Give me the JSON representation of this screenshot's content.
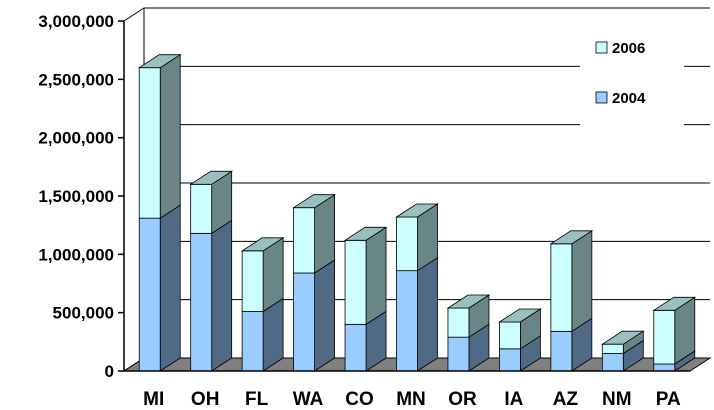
{
  "chart_data": {
    "type": "bar",
    "stacked": true,
    "three_d": true,
    "categories": [
      "MI",
      "OH",
      "FL",
      "WA",
      "CO",
      "MN",
      "OR",
      "IA",
      "AZ",
      "NM",
      "PA"
    ],
    "series": [
      {
        "name": "2004",
        "values": [
          1310000,
          1180000,
          510000,
          840000,
          400000,
          860000,
          290000,
          190000,
          340000,
          150000,
          60000
        ],
        "color": "#99ccff"
      },
      {
        "name": "2006",
        "values": [
          1290000,
          420000,
          520000,
          560000,
          720000,
          460000,
          250000,
          230000,
          750000,
          80000,
          460000
        ],
        "color": "#ccffff"
      }
    ],
    "ylim": [
      0,
      3000000
    ],
    "y_ticks": [
      0,
      500000,
      1000000,
      1500000,
      2000000,
      2500000,
      3000000
    ],
    "y_tick_labels": [
      "0",
      "500,000",
      "1,000,000",
      "1,500,000",
      "2,000,000",
      "2,500,000",
      "3,000,000"
    ],
    "grid": true,
    "legend": {
      "position": "top-right",
      "order": [
        "2006",
        "2004"
      ]
    },
    "title": "",
    "xlabel": "",
    "ylabel": ""
  }
}
